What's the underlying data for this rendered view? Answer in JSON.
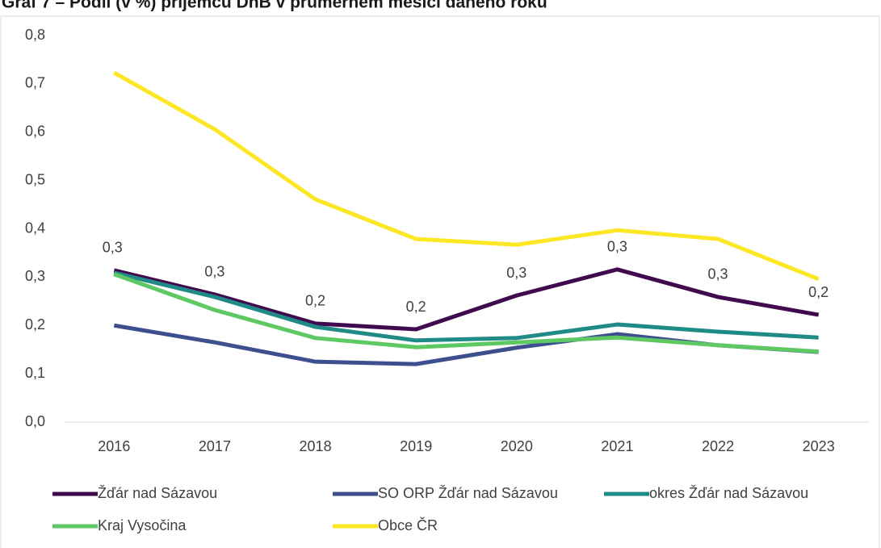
{
  "chart_data": {
    "type": "line",
    "title": "Graf 7 – Podíl (v %) příjemců DnB v průměrném měsíci daného roku",
    "categories": [
      "2016",
      "2017",
      "2018",
      "2019",
      "2020",
      "2021",
      "2022",
      "2023"
    ],
    "series": [
      {
        "name": "Žďár nad Sázavou",
        "color": "#420a4e",
        "values": [
          0.314,
          0.264,
          0.204,
          0.192,
          0.262,
          0.316,
          0.259,
          0.222
        ],
        "value_labels": [
          "0,3",
          "0,3",
          "0,2",
          "0,2",
          "0,3",
          "0,3",
          "0,3",
          "0,2"
        ]
      },
      {
        "name": "SO ORP Žďár nad Sázavou",
        "color": "#3d4f8f",
        "values": [
          0.2,
          0.165,
          0.125,
          0.12,
          0.154,
          0.182,
          0.159,
          0.145
        ]
      },
      {
        "name": "okres Žďár nad Sázavou",
        "color": "#1f8a86",
        "values": [
          0.309,
          0.259,
          0.197,
          0.169,
          0.174,
          0.202,
          0.187,
          0.175
        ]
      },
      {
        "name": "Kraj Vysočina",
        "color": "#5ec962",
        "values": [
          0.306,
          0.232,
          0.174,
          0.155,
          0.165,
          0.175,
          0.159,
          0.146
        ]
      },
      {
        "name": "Obce ČR",
        "color": "#fde725",
        "values": [
          0.723,
          0.606,
          0.461,
          0.379,
          0.367,
          0.397,
          0.379,
          0.296
        ]
      }
    ],
    "ylim": [
      0,
      0.8
    ],
    "yticks": [
      {
        "value": 0,
        "label": "0,0"
      },
      {
        "value": 0.1,
        "label": "0,1"
      },
      {
        "value": 0.2,
        "label": "0,2"
      },
      {
        "value": 0.3,
        "label": "0,3"
      },
      {
        "value": 0.4,
        "label": "0,4"
      },
      {
        "value": 0.5,
        "label": "0,5"
      },
      {
        "value": 0.6,
        "label": "0,6"
      },
      {
        "value": 0.7,
        "label": "0,7"
      },
      {
        "value": 0.8,
        "label": "0,8"
      }
    ],
    "grid": false,
    "legend": "bottom"
  }
}
